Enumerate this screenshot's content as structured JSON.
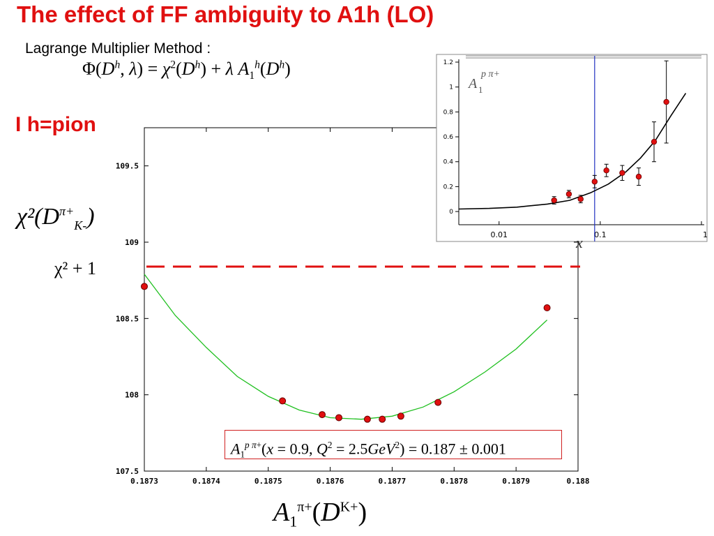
{
  "slide": {
    "title": "The effect of FF ambiguity to A1h (LO)",
    "subtitle": "Lagrange Multiplier Method :",
    "formula": "Φ(D^h, λ) = χ²(D^h) + λ A1^h(D^h)",
    "h_label": "h=pion",
    "h_label_prefix": "I",
    "y_axis_label": "χ²(D",
    "y_axis_sup": "π+",
    "y_axis_sub": "K-",
    "threshold_label": "χ² + 1",
    "x_axis_label": "A1^{π+}(D",
    "result_box": "A1^{p π+}(x = 0.9, Q² = 2.5GeV²) = 0.187 ± 0.001"
  },
  "colors": {
    "title": "#e01010",
    "fit_curve": "#20c020",
    "points": "#e01010",
    "threshold": "#e01010",
    "inset_line": "#2030c0"
  },
  "chart_data": [
    {
      "type": "scatter",
      "name": "main",
      "xlim": [
        0.1873,
        0.188
      ],
      "ylim": [
        107.5,
        109.75
      ],
      "x_ticks": [
        0.1873,
        0.1874,
        0.1875,
        0.1876,
        0.1877,
        0.1878,
        0.1879,
        0.188
      ],
      "x_tick_labels": [
        "0.1873",
        "0.1874",
        "0.1875",
        "0.1876",
        "0.1877",
        "0.1878",
        "0.1879",
        "0.188"
      ],
      "y_ticks": [
        107.5,
        108,
        108.5,
        109,
        109.5
      ],
      "y_tick_labels": [
        "107.5",
        "108",
        "108.5",
        "109",
        "109.5"
      ],
      "points": [
        {
          "x": 0.1873,
          "y": 108.71
        },
        {
          "x": 0.187523,
          "y": 107.96
        },
        {
          "x": 0.187587,
          "y": 107.87
        },
        {
          "x": 0.187614,
          "y": 107.85
        },
        {
          "x": 0.18766,
          "y": 107.84
        },
        {
          "x": 0.187684,
          "y": 107.84
        },
        {
          "x": 0.187714,
          "y": 107.86
        },
        {
          "x": 0.187774,
          "y": 107.95
        },
        {
          "x": 0.18795,
          "y": 108.57
        }
      ],
      "fit_curve": {
        "x": [
          0.1873,
          0.18735,
          0.1874,
          0.18745,
          0.1875,
          0.18755,
          0.1876,
          0.18765,
          0.1877,
          0.18775,
          0.1878,
          0.18785,
          0.1879,
          0.18795
        ],
        "y": [
          108.79,
          108.52,
          108.31,
          108.12,
          107.99,
          107.9,
          107.85,
          107.84,
          107.86,
          107.92,
          108.02,
          108.15,
          108.3,
          108.49
        ]
      },
      "threshold_y": 108.84
    },
    {
      "type": "scatter",
      "name": "inset",
      "x_scale": "log",
      "xlim": [
        0.004,
        1
      ],
      "ylim": [
        -0.05,
        1.2
      ],
      "y_ticks": [
        0,
        0.2,
        0.4,
        0.6,
        0.8,
        1,
        1.2
      ],
      "y_tick_labels": [
        "0",
        "0.2",
        "0.4",
        "0.6",
        "0.8",
        "1",
        "1.2"
      ],
      "x_ticks": [
        0.01,
        0.1,
        1
      ],
      "x_tick_labels": [
        "0.01",
        "0.1",
        "1"
      ],
      "legend_label": "A1^{p π+}",
      "x_axis_label": "x",
      "vertical_marker_x": 0.088,
      "points": [
        {
          "x": 0.035,
          "y": 0.09,
          "err": 0.03
        },
        {
          "x": 0.049,
          "y": 0.14,
          "err": 0.03
        },
        {
          "x": 0.064,
          "y": 0.1,
          "err": 0.03
        },
        {
          "x": 0.088,
          "y": 0.24,
          "err": 0.05
        },
        {
          "x": 0.115,
          "y": 0.33,
          "err": 0.05
        },
        {
          "x": 0.165,
          "y": 0.31,
          "err": 0.06
        },
        {
          "x": 0.24,
          "y": 0.28,
          "err": 0.07
        },
        {
          "x": 0.34,
          "y": 0.56,
          "err": 0.16
        },
        {
          "x": 0.45,
          "y": 0.88,
          "err": 0.33
        }
      ],
      "fit_curve": {
        "x": [
          0.004,
          0.008,
          0.015,
          0.03,
          0.05,
          0.08,
          0.12,
          0.18,
          0.25,
          0.35,
          0.5,
          0.7
        ],
        "y": [
          0.02,
          0.025,
          0.035,
          0.06,
          0.09,
          0.15,
          0.22,
          0.32,
          0.43,
          0.57,
          0.77,
          0.95
        ]
      }
    }
  ]
}
